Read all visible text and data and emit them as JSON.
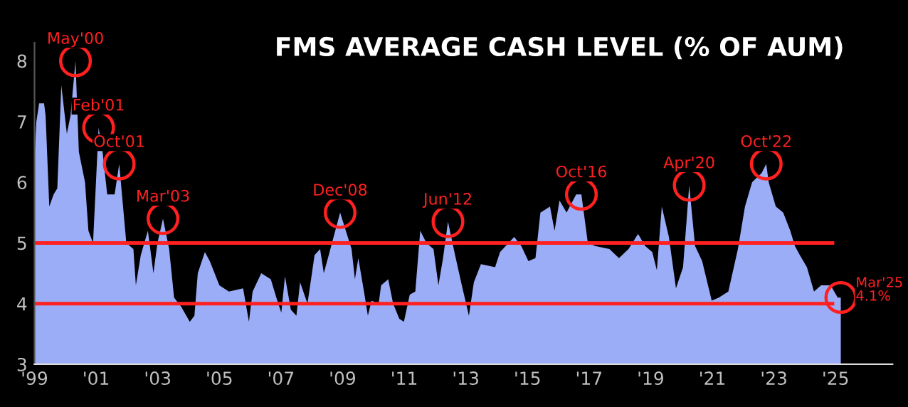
{
  "chart_data": {
    "type": "area",
    "title": "FMS AVERAGE CASH LEVEL (% OF AUM)",
    "x": [
      1999.0,
      1999.06,
      1999.15,
      1999.31,
      1999.36,
      1999.48,
      1999.62,
      1999.74,
      1999.87,
      2000.05,
      2000.17,
      2000.33,
      2000.44,
      2000.64,
      2000.75,
      2000.9,
      2001.08,
      2001.21,
      2001.36,
      2001.6,
      2001.75,
      2001.98,
      2002.21,
      2002.29,
      2002.45,
      2002.68,
      2002.86,
      2002.99,
      2003.17,
      2003.37,
      2003.53,
      2003.76,
      2004.04,
      2004.19,
      2004.3,
      2004.53,
      2004.69,
      2005.0,
      2005.31,
      2005.77,
      2005.96,
      2006.08,
      2006.36,
      2006.67,
      2006.85,
      2007.01,
      2007.13,
      2007.32,
      2007.5,
      2007.62,
      2007.86,
      2008.09,
      2008.27,
      2008.39,
      2008.55,
      2008.92,
      2009.29,
      2009.4,
      2009.51,
      2009.71,
      2009.82,
      2009.94,
      2010.17,
      2010.25,
      2010.48,
      2010.64,
      2010.84,
      2010.99,
      2011.18,
      2011.36,
      2011.52,
      2011.72,
      2011.95,
      2012.11,
      2012.26,
      2012.42,
      2012.65,
      2012.87,
      2013.1,
      2013.26,
      2013.49,
      2013.95,
      2014.11,
      2014.57,
      2014.8,
      2015.03,
      2015.26,
      2015.42,
      2015.73,
      2015.88,
      2016.04,
      2016.27,
      2016.58,
      2016.75,
      2016.96,
      2017.2,
      2017.66,
      2017.97,
      2018.28,
      2018.59,
      2018.82,
      2019.05,
      2019.2,
      2019.36,
      2019.59,
      2019.82,
      2020.05,
      2020.25,
      2020.44,
      2020.67,
      2020.98,
      2021.21,
      2021.52,
      2021.83,
      2022.06,
      2022.29,
      2022.6,
      2022.75,
      2022.83,
      2023.06,
      2023.3,
      2023.53,
      2023.68,
      2023.84,
      2024.07,
      2024.3,
      2024.53,
      2024.84,
      2025.07,
      2025.17
    ],
    "series": [
      {
        "color": "#9cadf7",
        "values": [
          6.4,
          7.0,
          7.3,
          7.3,
          7.1,
          5.6,
          5.8,
          5.9,
          7.6,
          6.8,
          7.1,
          8.0,
          6.5,
          6.0,
          5.2,
          5.0,
          6.9,
          6.5,
          5.8,
          5.8,
          6.3,
          5.0,
          4.9,
          4.3,
          4.8,
          5.2,
          4.5,
          5.0,
          5.4,
          4.9,
          4.1,
          3.95,
          3.7,
          3.8,
          4.5,
          4.85,
          4.7,
          4.3,
          4.2,
          4.25,
          3.7,
          4.2,
          4.5,
          4.4,
          4.1,
          3.85,
          4.45,
          3.9,
          3.8,
          4.35,
          4.0,
          4.8,
          4.9,
          4.5,
          4.8,
          5.5,
          4.9,
          4.4,
          4.75,
          4.15,
          3.8,
          4.05,
          4.0,
          4.3,
          4.4,
          4.0,
          3.75,
          3.7,
          4.15,
          4.2,
          5.2,
          5.0,
          4.9,
          4.3,
          4.75,
          5.35,
          4.8,
          4.3,
          3.8,
          4.35,
          4.65,
          4.6,
          4.85,
          5.1,
          4.95,
          4.7,
          4.75,
          5.5,
          5.6,
          5.2,
          5.7,
          5.5,
          5.8,
          5.8,
          5.0,
          4.95,
          4.9,
          4.75,
          4.9,
          5.15,
          4.95,
          4.85,
          4.55,
          5.6,
          5.1,
          4.25,
          4.6,
          5.95,
          4.95,
          4.7,
          4.05,
          4.1,
          4.2,
          4.9,
          5.6,
          6.0,
          6.15,
          6.3,
          6.0,
          5.6,
          5.5,
          5.2,
          4.95,
          4.8,
          4.6,
          4.2,
          4.3,
          4.3,
          4.1,
          4.1
        ]
      }
    ],
    "xlim": [
      1999.0,
      2026.85
    ],
    "ylim": [
      3,
      8.3
    ],
    "xticks": [
      {
        "value": 1999,
        "label": "'99"
      },
      {
        "value": 2001,
        "label": "'01"
      },
      {
        "value": 2003,
        "label": "'03"
      },
      {
        "value": 2005,
        "label": "'05"
      },
      {
        "value": 2007,
        "label": "'07"
      },
      {
        "value": 2009,
        "label": "'09"
      },
      {
        "value": 2011,
        "label": "'11"
      },
      {
        "value": 2013,
        "label": "'13"
      },
      {
        "value": 2015,
        "label": "'15"
      },
      {
        "value": 2017,
        "label": "'17"
      },
      {
        "value": 2019,
        "label": "'19"
      },
      {
        "value": 2021,
        "label": "'21"
      },
      {
        "value": 2023,
        "label": "'23"
      },
      {
        "value": 2025,
        "label": "'25"
      }
    ],
    "yticks": [
      3,
      4,
      5,
      6,
      7,
      8
    ],
    "ref_lines": [
      {
        "axis": "y",
        "value": 5,
        "color": "#ff2020"
      },
      {
        "axis": "y",
        "value": 4,
        "color": "#ff2020"
      }
    ],
    "annotations": [
      {
        "text": "May'00",
        "x": 2000.33,
        "y": 8.0
      },
      {
        "text": "Feb'01",
        "x": 2001.08,
        "y": 6.9
      },
      {
        "text": "Oct'01",
        "x": 2001.75,
        "y": 6.3
      },
      {
        "text": "Mar'03",
        "x": 2003.17,
        "y": 5.4
      },
      {
        "text": "Dec'08",
        "x": 2008.92,
        "y": 5.5
      },
      {
        "text": "Jun'12",
        "x": 2012.42,
        "y": 5.35
      },
      {
        "text": "Oct'16",
        "x": 2016.75,
        "y": 5.8
      },
      {
        "text": "Apr'20",
        "x": 2020.25,
        "y": 5.95
      },
      {
        "text": "Oct'22",
        "x": 2022.75,
        "y": 6.3
      },
      {
        "text": "Mar'25\n4.1%",
        "x": 2025.17,
        "y": 4.1
      }
    ],
    "grid": false,
    "legend": false
  }
}
